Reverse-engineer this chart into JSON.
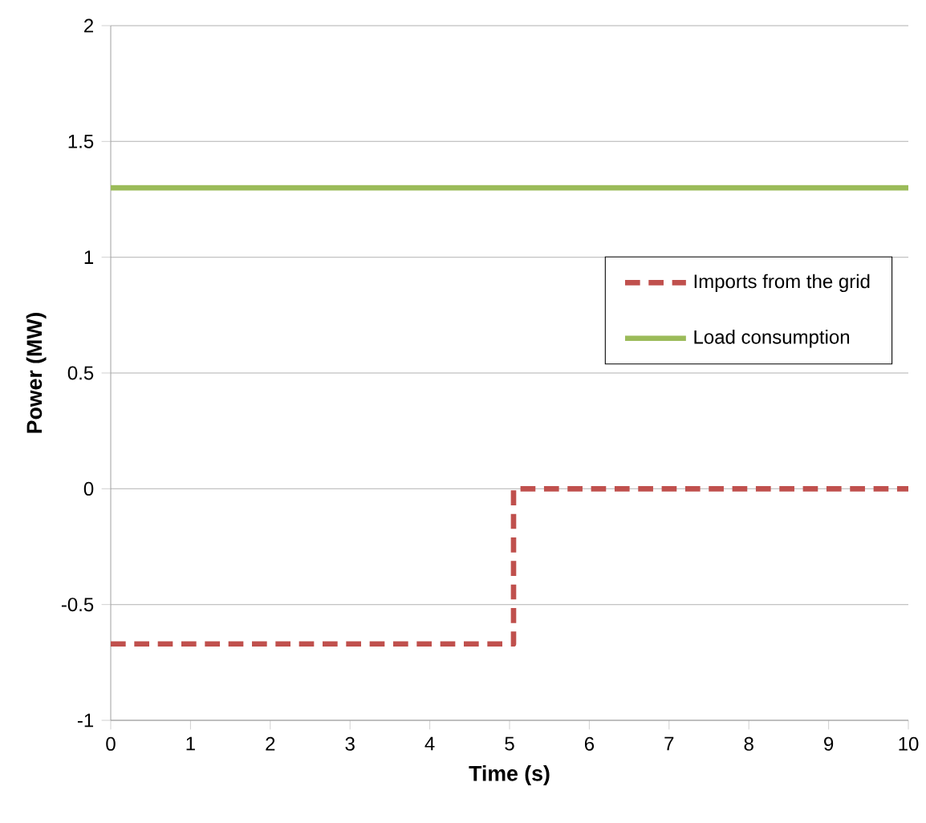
{
  "chart_data": {
    "type": "line",
    "xlabel": "Time (s)",
    "ylabel": "Power (MW)",
    "xlim": [
      0,
      10
    ],
    "ylim": [
      -1,
      2
    ],
    "xticks": [
      0,
      1,
      2,
      3,
      4,
      5,
      6,
      7,
      8,
      9,
      10
    ],
    "yticks": [
      -1,
      -0.5,
      0,
      0.5,
      1,
      1.5,
      2
    ],
    "grid": "y",
    "legend": "right",
    "series": [
      {
        "name": "Imports from the grid",
        "type": "step",
        "color": "#c0504d",
        "line_style": "dashed",
        "x": [
          0,
          5.05,
          10
        ],
        "values": [
          -0.67,
          0,
          0
        ]
      },
      {
        "name": "Load consumption",
        "color": "#9bbb59",
        "line_style": "solid",
        "x": [
          0,
          10
        ],
        "values": [
          1.3,
          1.3
        ]
      }
    ]
  }
}
